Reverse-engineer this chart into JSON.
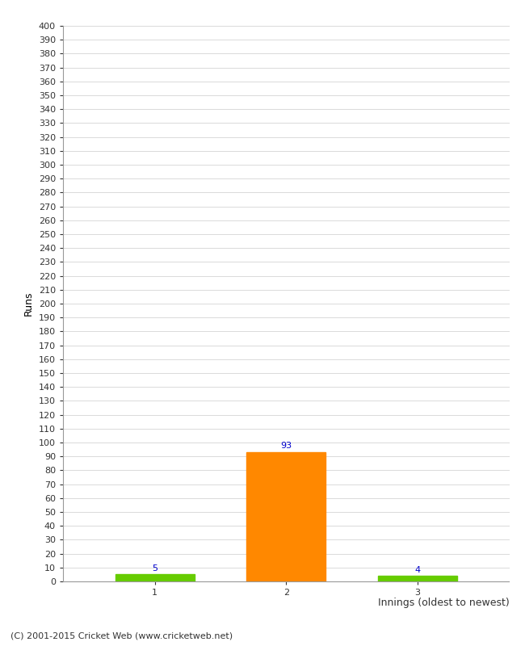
{
  "xlabel": "Innings (oldest to newest)",
  "ylabel": "Runs",
  "categories": [
    1,
    2,
    3
  ],
  "values": [
    5,
    93,
    4
  ],
  "bar_colors": [
    "#66cc00",
    "#ff8800",
    "#66cc00"
  ],
  "value_labels": [
    5,
    93,
    4
  ],
  "value_label_color": "#0000cc",
  "ylim": [
    0,
    400
  ],
  "ytick_step": 10,
  "background_color": "#ffffff",
  "grid_color": "#cccccc",
  "footer": "(C) 2001-2015 Cricket Web (www.cricketweb.net)",
  "tick_fontsize": 8,
  "label_fontsize": 9,
  "footer_fontsize": 8
}
